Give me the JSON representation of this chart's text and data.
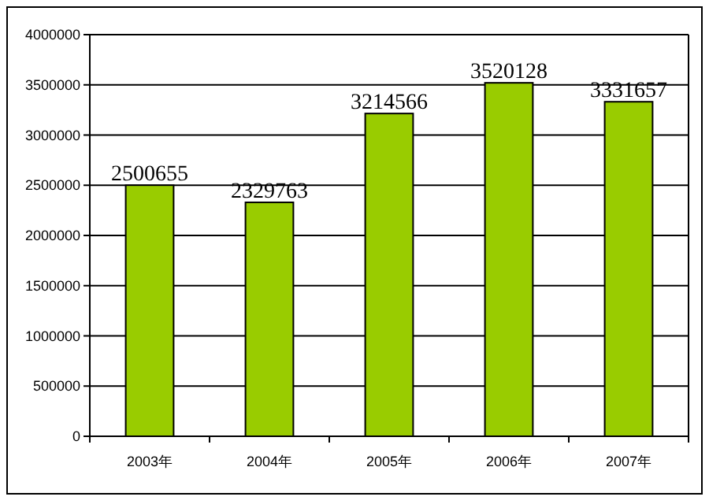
{
  "chart_data": {
    "type": "bar",
    "categories": [
      "2003年",
      "2004年",
      "2005年",
      "2006年",
      "2007年"
    ],
    "values": [
      2500655,
      2329763,
      3214566,
      3520128,
      3331657
    ],
    "color": "#99cc00",
    "ylim": [
      0,
      4000000
    ],
    "yticks": [
      0,
      500000,
      1000000,
      1500000,
      2000000,
      2500000,
      3000000,
      3500000,
      4000000
    ],
    "grid": "y",
    "data_labels": true
  }
}
